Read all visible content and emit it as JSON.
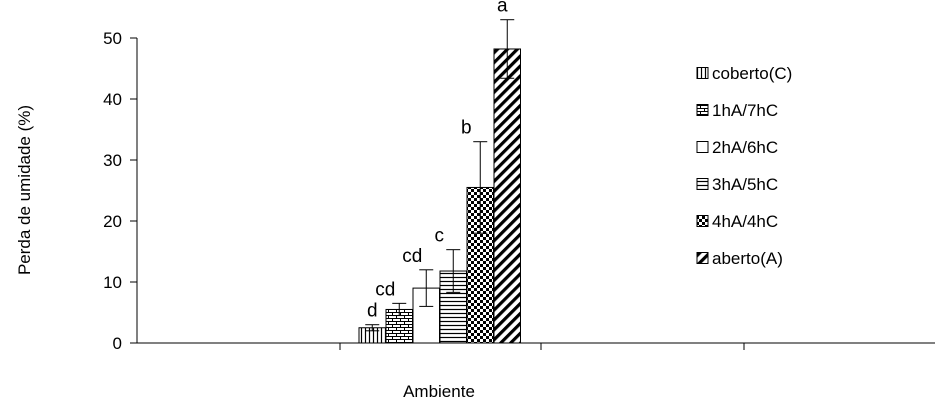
{
  "chart_data": {
    "type": "bar",
    "xlabel": "Ambiente",
    "ylabel": "Perda de umidade (%)",
    "ylim": [
      0,
      50
    ],
    "yticks": [
      "0",
      "10",
      "20",
      "30",
      "40",
      "50"
    ],
    "grid": false,
    "legend_position": "right",
    "series": [
      {
        "name": "coberto(C)",
        "value": 2.5,
        "error": 0.5,
        "label": "d",
        "pattern": "vertical-lines"
      },
      {
        "name": "1hA/7hC",
        "value": 5.5,
        "error": 1.0,
        "label": "cd",
        "pattern": "bricks"
      },
      {
        "name": "2hA/6hC",
        "value": 9.0,
        "error": 3.0,
        "label": "cd",
        "pattern": "none"
      },
      {
        "name": "3hA/5hC",
        "value": 11.8,
        "error": 3.5,
        "label": "c",
        "pattern": "horizontal-lines"
      },
      {
        "name": "4hA/4hC",
        "value": 25.5,
        "error": 7.5,
        "label": "b",
        "pattern": "checker"
      },
      {
        "name": "aberto(A)",
        "value": 48.2,
        "error": 4.8,
        "label": "a",
        "pattern": "diagonal"
      }
    ]
  }
}
